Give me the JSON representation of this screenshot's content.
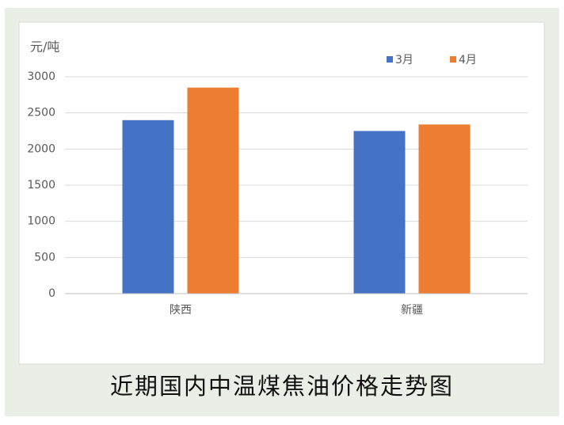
{
  "chart_data": {
    "type": "bar",
    "title": "近期国内中温煤焦油价格走势图",
    "y_label": "元/吨",
    "categories": [
      "陕西",
      "新疆"
    ],
    "series": [
      {
        "name": "3月",
        "color": "#4472c4",
        "values": [
          2400,
          2250
        ]
      },
      {
        "name": "4月",
        "color": "#ed7d31",
        "values": [
          2850,
          2340
        ]
      }
    ],
    "ylim": [
      0,
      3000
    ],
    "yticks": [
      0,
      500,
      1000,
      1500,
      2000,
      2500,
      3000
    ],
    "grid": true,
    "legend": "top-right"
  }
}
